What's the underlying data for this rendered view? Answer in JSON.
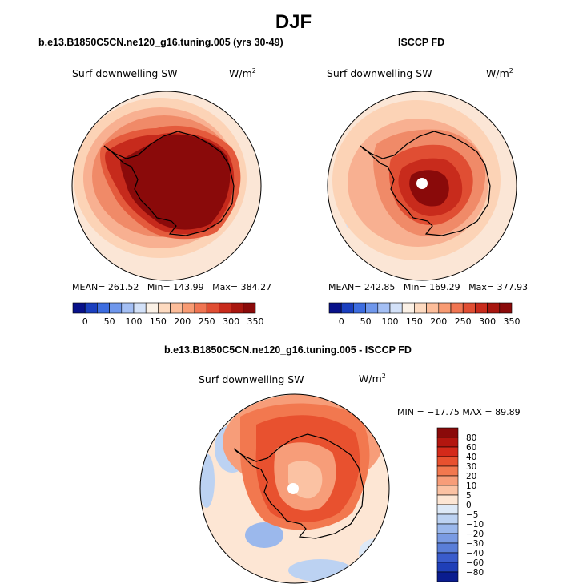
{
  "season": "DJF",
  "panels": {
    "model": {
      "title": "b.e13.B1850C5CN.ne120_g16.tuning.005 (yrs 30-49)",
      "variable": "Surf downwelling SW",
      "units_base": "W/m",
      "units_exp": "2",
      "mean_label": "MEAN=",
      "mean": "261.52",
      "min_label": "Min=",
      "min": "143.99",
      "max_label": "Max=",
      "max": "384.27"
    },
    "obs": {
      "title": "ISCCP FD",
      "variable": "Surf downwelling SW",
      "units_base": "W/m",
      "units_exp": "2",
      "mean_label": "MEAN=",
      "mean": "242.85",
      "min_label": "Min=",
      "min": "169.29",
      "max_label": "Max=",
      "max": "377.93"
    },
    "diff": {
      "title": "b.e13.B1850C5CN.ne120_g16.tuning.005 - ISCCP FD",
      "variable": "Surf downwelling SW",
      "units_base": "W/m",
      "units_exp": "2",
      "minmax": "MIN = −17.75 MAX =  89.89"
    }
  },
  "chart_data": [
    {
      "type": "heatmap",
      "title": "b.e13.B1850C5CN.ne120_g16.tuning.005 (yrs 30-49)",
      "projection": "south polar stereographic",
      "variable": "Surf downwelling SW",
      "units": "W/m2",
      "mean": 261.52,
      "min": 143.99,
      "max": 384.27,
      "colorbar_levels": [
        0,
        25,
        50,
        75,
        100,
        125,
        150,
        175,
        200,
        225,
        250,
        275,
        300,
        325,
        350
      ],
      "colorbar_ticks": [
        "0",
        "50",
        "100",
        "150",
        "200",
        "250",
        "300",
        "350"
      ],
      "colorbar_colors": [
        "#08118a",
        "#1a3fbf",
        "#3d6de0",
        "#6f97ec",
        "#a4bff4",
        "#d3e1f8",
        "#fbf1e6",
        "#fddac0",
        "#fcbd9a",
        "#f89b73",
        "#f07552",
        "#e04e33",
        "#c82b1c",
        "#a8160f",
        "#8a0a0a"
      ]
    },
    {
      "type": "heatmap",
      "title": "ISCCP FD",
      "projection": "south polar stereographic",
      "variable": "Surf downwelling SW",
      "units": "W/m2",
      "mean": 242.85,
      "min": 169.29,
      "max": 377.93,
      "colorbar_levels": [
        0,
        25,
        50,
        75,
        100,
        125,
        150,
        175,
        200,
        225,
        250,
        275,
        300,
        325,
        350
      ],
      "colorbar_ticks": [
        "0",
        "50",
        "100",
        "150",
        "200",
        "250",
        "300",
        "350"
      ],
      "colorbar_colors": [
        "#08118a",
        "#1a3fbf",
        "#3d6de0",
        "#6f97ec",
        "#a4bff4",
        "#d3e1f8",
        "#fbf1e6",
        "#fddac0",
        "#fcbd9a",
        "#f89b73",
        "#f07552",
        "#e04e33",
        "#c82b1c",
        "#a8160f",
        "#8a0a0a"
      ]
    },
    {
      "type": "heatmap",
      "title": "b.e13.B1850C5CN.ne120_g16.tuning.005 - ISCCP FD",
      "projection": "south polar stereographic",
      "variable": "Surf downwelling SW",
      "units": "W/m2",
      "min": -17.75,
      "max": 89.89,
      "colorbar_ticks": [
        "80",
        "60",
        "40",
        "30",
        "20",
        "10",
        "5",
        "0",
        "−5",
        "−10",
        "−20",
        "−30",
        "−40",
        "−60",
        "−80"
      ],
      "colorbar_colors": [
        "#8a0a0a",
        "#b3160f",
        "#d42a1a",
        "#e8512f",
        "#f2784f",
        "#f79d79",
        "#fbc2a3",
        "#fde6d4",
        "#dde9f7",
        "#bcd2f2",
        "#9bb8ec",
        "#7a9be3",
        "#5a7ed8",
        "#3a5ccc",
        "#1f3fb8",
        "#0a1c8f"
      ]
    }
  ]
}
